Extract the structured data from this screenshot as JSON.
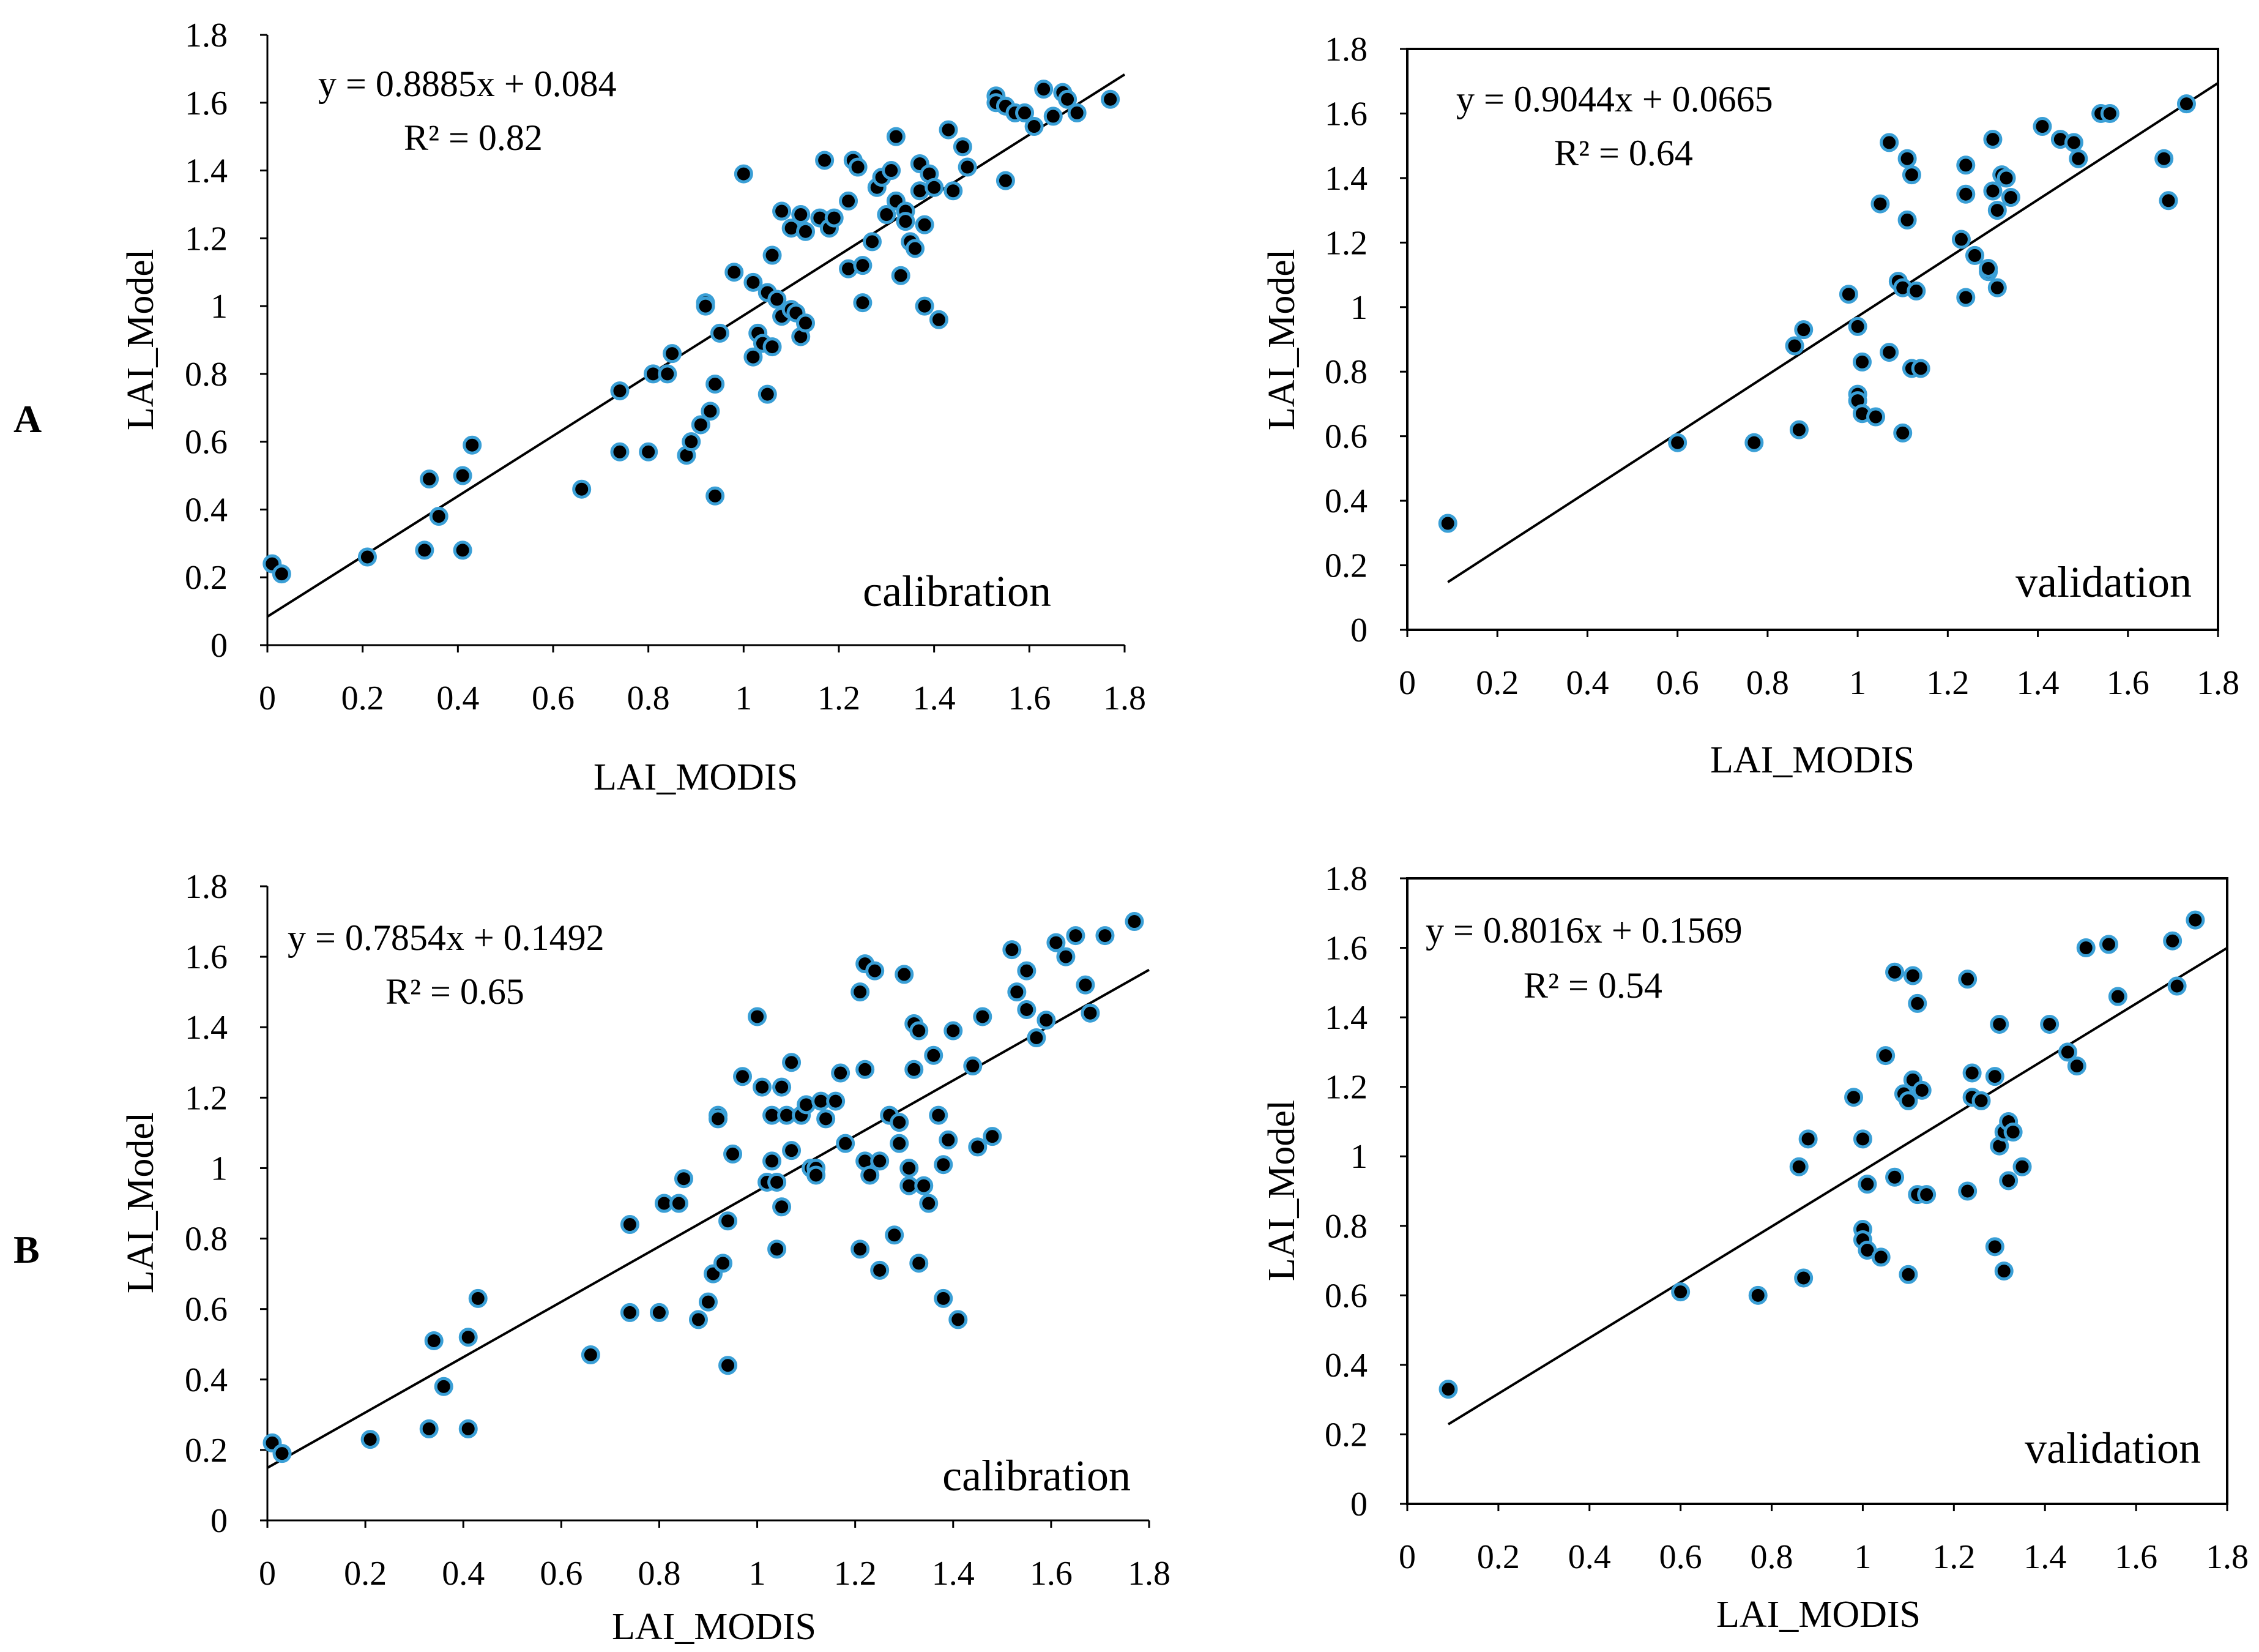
{
  "figure": {
    "row_labels": [
      "A",
      "B"
    ],
    "colors": {
      "point_fill": "#000000",
      "point_ring": "#3a9fd6",
      "line": "#000000",
      "frame": "#000000"
    }
  },
  "chart_data": [
    {
      "type": "scatter",
      "id": "A-calibration",
      "annotation": "calibration",
      "equation": "y = 0.8885x + 0.084",
      "r2": "R² = 0.82",
      "xlabel": "LAI_MODIS",
      "ylabel": "LAI_Model",
      "xlim": [
        0,
        1.8
      ],
      "ylim": [
        0,
        1.8
      ],
      "xticks": [
        "0",
        "0.2",
        "0.4",
        "0.6",
        "0.8",
        "1",
        "1.2",
        "1.4",
        "1.6",
        "1.8"
      ],
      "yticks": [
        "0",
        "0.2",
        "0.4",
        "0.6",
        "0.8",
        "1",
        "1.2",
        "1.4",
        "1.6",
        "1.8"
      ],
      "trendline": {
        "slope": 0.8885,
        "intercept": 0.084,
        "x_range": [
          0,
          1.8
        ]
      },
      "framed": false,
      "points": [
        [
          0.01,
          0.24
        ],
        [
          0.03,
          0.21
        ],
        [
          0.21,
          0.26
        ],
        [
          0.33,
          0.28
        ],
        [
          0.34,
          0.49
        ],
        [
          0.36,
          0.38
        ],
        [
          0.41,
          0.28
        ],
        [
          0.41,
          0.5
        ],
        [
          0.43,
          0.59
        ],
        [
          0.66,
          0.46
        ],
        [
          0.74,
          0.57
        ],
        [
          0.74,
          0.75
        ],
        [
          0.8,
          0.57
        ],
        [
          0.81,
          0.8
        ],
        [
          0.84,
          0.8
        ],
        [
          0.85,
          0.86
        ],
        [
          0.88,
          0.56
        ],
        [
          0.89,
          0.6
        ],
        [
          0.91,
          0.65
        ],
        [
          0.92,
          1.01
        ],
        [
          0.92,
          1.0
        ],
        [
          0.93,
          0.69
        ],
        [
          0.94,
          0.77
        ],
        [
          0.94,
          0.44
        ],
        [
          0.95,
          0.92
        ],
        [
          0.98,
          1.1
        ],
        [
          1.0,
          1.39
        ],
        [
          1.02,
          1.07
        ],
        [
          1.02,
          0.85
        ],
        [
          1.03,
          0.92
        ],
        [
          1.04,
          0.89
        ],
        [
          1.05,
          0.74
        ],
        [
          1.05,
          1.04
        ],
        [
          1.06,
          1.15
        ],
        [
          1.06,
          0.88
        ],
        [
          1.07,
          1.02
        ],
        [
          1.08,
          1.28
        ],
        [
          1.08,
          0.97
        ],
        [
          1.1,
          1.23
        ],
        [
          1.1,
          0.99
        ],
        [
          1.11,
          0.98
        ],
        [
          1.12,
          0.91
        ],
        [
          1.12,
          1.27
        ],
        [
          1.13,
          0.95
        ],
        [
          1.13,
          1.22
        ],
        [
          1.16,
          1.26
        ],
        [
          1.17,
          1.43
        ],
        [
          1.18,
          1.23
        ],
        [
          1.19,
          1.26
        ],
        [
          1.22,
          1.31
        ],
        [
          1.22,
          1.11
        ],
        [
          1.23,
          1.43
        ],
        [
          1.24,
          1.41
        ],
        [
          1.25,
          1.12
        ],
        [
          1.25,
          1.01
        ],
        [
          1.27,
          1.19
        ],
        [
          1.28,
          1.35
        ],
        [
          1.29,
          1.38
        ],
        [
          1.3,
          1.27
        ],
        [
          1.31,
          1.4
        ],
        [
          1.32,
          1.31
        ],
        [
          1.32,
          1.5
        ],
        [
          1.33,
          1.09
        ],
        [
          1.34,
          1.28
        ],
        [
          1.34,
          1.25
        ],
        [
          1.35,
          1.19
        ],
        [
          1.36,
          1.17
        ],
        [
          1.37,
          1.34
        ],
        [
          1.37,
          1.42
        ],
        [
          1.38,
          1.24
        ],
        [
          1.38,
          1.0
        ],
        [
          1.39,
          1.39
        ],
        [
          1.4,
          1.35
        ],
        [
          1.41,
          0.96
        ],
        [
          1.43,
          1.52
        ],
        [
          1.44,
          1.34
        ],
        [
          1.46,
          1.47
        ],
        [
          1.47,
          1.41
        ],
        [
          1.53,
          1.62
        ],
        [
          1.53,
          1.6
        ],
        [
          1.55,
          1.37
        ],
        [
          1.55,
          1.59
        ],
        [
          1.57,
          1.57
        ],
        [
          1.59,
          1.57
        ],
        [
          1.61,
          1.53
        ],
        [
          1.63,
          1.64
        ],
        [
          1.65,
          1.56
        ],
        [
          1.67,
          1.63
        ],
        [
          1.68,
          1.61
        ],
        [
          1.7,
          1.57
        ],
        [
          1.77,
          1.61
        ]
      ]
    },
    {
      "type": "scatter",
      "id": "A-validation",
      "annotation": "validation",
      "equation": "y = 0.9044x + 0.0665",
      "r2": "R² = 0.64",
      "xlabel": "LAI_MODIS",
      "ylabel": "LAI_Model",
      "xlim": [
        0,
        1.8
      ],
      "ylim": [
        0,
        1.8
      ],
      "xticks": [
        "0",
        "0.2",
        "0.4",
        "0.6",
        "0.8",
        "1",
        "1.2",
        "1.4",
        "1.6",
        "1.8"
      ],
      "yticks": [
        "0",
        "0.2",
        "0.4",
        "0.6",
        "0.8",
        "1",
        "1.2",
        "1.4",
        "1.6",
        "1.8"
      ],
      "trendline": {
        "slope": 0.9044,
        "intercept": 0.0665,
        "x_range": [
          0.09,
          1.8
        ]
      },
      "framed": true,
      "points": [
        [
          0.09,
          0.33
        ],
        [
          0.6,
          0.58
        ],
        [
          0.77,
          0.58
        ],
        [
          0.86,
          0.88
        ],
        [
          0.87,
          0.62
        ],
        [
          0.88,
          0.93
        ],
        [
          0.98,
          1.04
        ],
        [
          1.0,
          0.94
        ],
        [
          1.0,
          0.73
        ],
        [
          1.0,
          0.71
        ],
        [
          1.01,
          0.83
        ],
        [
          1.01,
          0.67
        ],
        [
          1.04,
          0.66
        ],
        [
          1.05,
          1.32
        ],
        [
          1.07,
          1.51
        ],
        [
          1.07,
          0.86
        ],
        [
          1.09,
          1.08
        ],
        [
          1.1,
          0.61
        ],
        [
          1.1,
          1.06
        ],
        [
          1.11,
          1.46
        ],
        [
          1.11,
          1.27
        ],
        [
          1.12,
          1.41
        ],
        [
          1.12,
          0.81
        ],
        [
          1.13,
          1.05
        ],
        [
          1.14,
          0.81
        ],
        [
          1.23,
          1.21
        ],
        [
          1.24,
          1.03
        ],
        [
          1.24,
          1.35
        ],
        [
          1.24,
          1.44
        ],
        [
          1.26,
          1.16
        ],
        [
          1.29,
          1.11
        ],
        [
          1.29,
          1.12
        ],
        [
          1.3,
          1.52
        ],
        [
          1.3,
          1.36
        ],
        [
          1.31,
          1.06
        ],
        [
          1.31,
          1.3
        ],
        [
          1.32,
          1.41
        ],
        [
          1.33,
          1.4
        ],
        [
          1.34,
          1.34
        ],
        [
          1.41,
          1.56
        ],
        [
          1.45,
          1.52
        ],
        [
          1.48,
          1.51
        ],
        [
          1.49,
          1.46
        ],
        [
          1.54,
          1.6
        ],
        [
          1.56,
          1.6
        ],
        [
          1.68,
          1.46
        ],
        [
          1.69,
          1.33
        ],
        [
          1.73,
          1.63
        ]
      ]
    },
    {
      "type": "scatter",
      "id": "B-calibration",
      "annotation": "calibration",
      "equation": "y = 0.7854x + 0.1492",
      "r2": "R² = 0.65",
      "xlabel": "LAI_MODIS",
      "ylabel": "LAI_Model",
      "xlim": [
        0,
        1.8
      ],
      "ylim": [
        0,
        1.8
      ],
      "xticks": [
        "0",
        "0.2",
        "0.4",
        "0.6",
        "0.8",
        "1",
        "1.2",
        "1.4",
        "1.6",
        "1.8"
      ],
      "yticks": [
        "0",
        "0.2",
        "0.4",
        "0.6",
        "0.8",
        "1",
        "1.2",
        "1.4",
        "1.6",
        "1.8"
      ],
      "trendline": {
        "slope": 0.7854,
        "intercept": 0.1492,
        "x_range": [
          0,
          1.8
        ]
      },
      "framed": false,
      "points": [
        [
          0.01,
          0.22
        ],
        [
          0.03,
          0.19
        ],
        [
          0.21,
          0.23
        ],
        [
          0.33,
          0.26
        ],
        [
          0.34,
          0.51
        ],
        [
          0.36,
          0.38
        ],
        [
          0.41,
          0.26
        ],
        [
          0.41,
          0.52
        ],
        [
          0.43,
          0.63
        ],
        [
          0.66,
          0.47
        ],
        [
          0.74,
          0.59
        ],
        [
          0.74,
          0.84
        ],
        [
          0.8,
          0.59
        ],
        [
          0.81,
          0.9
        ],
        [
          0.84,
          0.9
        ],
        [
          0.85,
          0.97
        ],
        [
          0.88,
          0.57
        ],
        [
          0.9,
          0.62
        ],
        [
          0.91,
          0.7
        ],
        [
          0.92,
          1.15
        ],
        [
          0.92,
          1.14
        ],
        [
          0.93,
          0.73
        ],
        [
          0.94,
          0.85
        ],
        [
          0.94,
          0.44
        ],
        [
          0.95,
          1.04
        ],
        [
          0.97,
          1.26
        ],
        [
          1.0,
          1.43
        ],
        [
          1.01,
          1.23
        ],
        [
          1.02,
          0.96
        ],
        [
          1.03,
          1.02
        ],
        [
          1.03,
          1.15
        ],
        [
          1.04,
          0.77
        ],
        [
          1.04,
          0.96
        ],
        [
          1.05,
          1.23
        ],
        [
          1.05,
          0.89
        ],
        [
          1.06,
          1.15
        ],
        [
          1.07,
          1.3
        ],
        [
          1.07,
          1.05
        ],
        [
          1.09,
          1.15
        ],
        [
          1.1,
          1.18
        ],
        [
          1.11,
          1.0
        ],
        [
          1.12,
          1.0
        ],
        [
          1.12,
          0.98
        ],
        [
          1.13,
          1.19
        ],
        [
          1.14,
          1.14
        ],
        [
          1.16,
          1.19
        ],
        [
          1.17,
          1.27
        ],
        [
          1.18,
          1.07
        ],
        [
          1.21,
          1.5
        ],
        [
          1.21,
          0.77
        ],
        [
          1.22,
          1.58
        ],
        [
          1.22,
          1.28
        ],
        [
          1.22,
          1.02
        ],
        [
          1.23,
          0.98
        ],
        [
          1.24,
          1.56
        ],
        [
          1.25,
          1.02
        ],
        [
          1.25,
          0.71
        ],
        [
          1.27,
          1.15
        ],
        [
          1.28,
          0.81
        ],
        [
          1.29,
          1.13
        ],
        [
          1.29,
          1.07
        ],
        [
          1.3,
          1.55
        ],
        [
          1.31,
          1.0
        ],
        [
          1.31,
          0.95
        ],
        [
          1.32,
          1.41
        ],
        [
          1.32,
          1.28
        ],
        [
          1.33,
          1.39
        ],
        [
          1.33,
          0.73
        ],
        [
          1.34,
          0.95
        ],
        [
          1.35,
          0.9
        ],
        [
          1.36,
          1.32
        ],
        [
          1.37,
          1.15
        ],
        [
          1.38,
          1.01
        ],
        [
          1.38,
          0.63
        ],
        [
          1.39,
          1.08
        ],
        [
          1.4,
          1.39
        ],
        [
          1.41,
          0.57
        ],
        [
          1.44,
          1.29
        ],
        [
          1.45,
          1.06
        ],
        [
          1.46,
          1.43
        ],
        [
          1.48,
          1.09
        ],
        [
          1.52,
          1.62
        ],
        [
          1.53,
          1.5
        ],
        [
          1.55,
          1.56
        ],
        [
          1.55,
          1.45
        ],
        [
          1.57,
          1.37
        ],
        [
          1.59,
          1.42
        ],
        [
          1.61,
          1.64
        ],
        [
          1.63,
          1.6
        ],
        [
          1.65,
          1.66
        ],
        [
          1.67,
          1.52
        ],
        [
          1.68,
          1.44
        ],
        [
          1.71,
          1.66
        ],
        [
          1.77,
          1.7
        ]
      ]
    },
    {
      "type": "scatter",
      "id": "B-validation",
      "annotation": "validation",
      "equation": "y = 0.8016x + 0.1569",
      "r2": "R² = 0.54",
      "xlabel": "LAI_MODIS",
      "ylabel": "LAI_Model",
      "xlim": [
        0,
        1.8
      ],
      "ylim": [
        0,
        1.8
      ],
      "xticks": [
        "0",
        "0.2",
        "0.4",
        "0.6",
        "0.8",
        "1",
        "1.2",
        "1.4",
        "1.6",
        "1.8"
      ],
      "yticks": [
        "0",
        "0.2",
        "0.4",
        "0.6",
        "0.8",
        "1",
        "1.2",
        "1.4",
        "1.6",
        "1.8"
      ],
      "trendline": {
        "slope": 0.8016,
        "intercept": 0.1569,
        "x_range": [
          0.09,
          1.8
        ]
      },
      "framed": true,
      "points": [
        [
          0.09,
          0.33
        ],
        [
          0.6,
          0.61
        ],
        [
          0.77,
          0.6
        ],
        [
          0.86,
          0.97
        ],
        [
          0.87,
          0.65
        ],
        [
          0.88,
          1.05
        ],
        [
          0.98,
          1.17
        ],
        [
          1.0,
          1.05
        ],
        [
          1.0,
          0.79
        ],
        [
          1.0,
          0.76
        ],
        [
          1.01,
          0.92
        ],
        [
          1.01,
          0.73
        ],
        [
          1.04,
          0.71
        ],
        [
          1.05,
          1.29
        ],
        [
          1.07,
          1.53
        ],
        [
          1.07,
          0.94
        ],
        [
          1.09,
          1.18
        ],
        [
          1.1,
          0.66
        ],
        [
          1.1,
          1.16
        ],
        [
          1.11,
          1.52
        ],
        [
          1.11,
          1.22
        ],
        [
          1.12,
          1.44
        ],
        [
          1.12,
          0.89
        ],
        [
          1.13,
          1.19
        ],
        [
          1.14,
          0.89
        ],
        [
          1.23,
          0.9
        ],
        [
          1.23,
          1.51
        ],
        [
          1.24,
          1.24
        ],
        [
          1.24,
          1.17
        ],
        [
          1.26,
          1.16
        ],
        [
          1.29,
          1.23
        ],
        [
          1.29,
          0.74
        ],
        [
          1.3,
          1.38
        ],
        [
          1.3,
          1.03
        ],
        [
          1.31,
          1.07
        ],
        [
          1.31,
          0.67
        ],
        [
          1.32,
          0.93
        ],
        [
          1.32,
          1.1
        ],
        [
          1.33,
          1.07
        ],
        [
          1.35,
          0.97
        ],
        [
          1.41,
          1.38
        ],
        [
          1.45,
          1.3
        ],
        [
          1.47,
          1.26
        ],
        [
          1.49,
          1.6
        ],
        [
          1.54,
          1.61
        ],
        [
          1.56,
          1.46
        ],
        [
          1.68,
          1.62
        ],
        [
          1.69,
          1.49
        ],
        [
          1.73,
          1.68
        ]
      ]
    }
  ]
}
